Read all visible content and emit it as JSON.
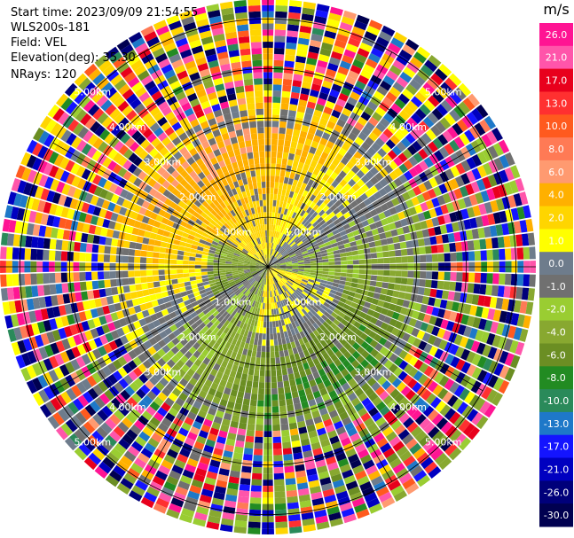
{
  "header": {
    "start_time": "Start time: 2023/09/09 21:54:55",
    "station": "WLS200s-181",
    "field": "Field: VEL",
    "elevation": "Elevation(deg): 35.30",
    "nrays": "NRays: 120"
  },
  "chart_data": {
    "type": "ppi",
    "field": "VEL",
    "rays": 120,
    "range_rings_km": [
      1.0,
      2.0,
      3.0,
      4.0,
      5.0
    ],
    "range_ring_labels": [
      "1.00km",
      "2.00km",
      "3.00km",
      "4.00km",
      "5.00km"
    ],
    "max_range_km": 5.4,
    "gates": 44,
    "crosshair": true,
    "colorbar": {
      "unit": "m/s",
      "ticks": [
        "26.0",
        "21.0",
        "17.0",
        "13.0",
        "10.0",
        "8.0",
        "6.0",
        "4.0",
        "2.0",
        "1.0",
        "0.0",
        "-1.0",
        "-2.0",
        "-4.0",
        "-6.0",
        "-8.0",
        "-10.0",
        "-13.0",
        "-17.0",
        "-21.0",
        "-26.0",
        "-30.0"
      ],
      "bins": [
        {
          "min": 26.0,
          "max": 30.0,
          "color": "#ff1493"
        },
        {
          "min": 21.0,
          "max": 26.0,
          "color": "#ff55aa"
        },
        {
          "min": 17.0,
          "max": 21.0,
          "color": "#e8001c"
        },
        {
          "min": 13.0,
          "max": 17.0,
          "color": "#ff3030"
        },
        {
          "min": 10.0,
          "max": 13.0,
          "color": "#ff5a1e"
        },
        {
          "min": 8.0,
          "max": 10.0,
          "color": "#ff7a55"
        },
        {
          "min": 6.0,
          "max": 8.0,
          "color": "#ff9a70"
        },
        {
          "min": 4.0,
          "max": 6.0,
          "color": "#ffb000"
        },
        {
          "min": 2.0,
          "max": 4.0,
          "color": "#ffd500"
        },
        {
          "min": 1.0,
          "max": 2.0,
          "color": "#ffff00"
        },
        {
          "min": 0.0,
          "max": 1.0,
          "color": "#6e7c8c"
        },
        {
          "min": -1.0,
          "max": 0.0,
          "color": "#707070"
        },
        {
          "min": -2.0,
          "max": -1.0,
          "color": "#9acd32"
        },
        {
          "min": -4.0,
          "max": -2.0,
          "color": "#88a830"
        },
        {
          "min": -6.0,
          "max": -4.0,
          "color": "#6b8e23"
        },
        {
          "min": -8.0,
          "max": -6.0,
          "color": "#228b22"
        },
        {
          "min": -10.0,
          "max": -8.0,
          "color": "#2a8a5a"
        },
        {
          "min": -13.0,
          "max": -10.0,
          "color": "#1e78c8"
        },
        {
          "min": -17.0,
          "max": -13.0,
          "color": "#1414ff"
        },
        {
          "min": -21.0,
          "max": -17.0,
          "color": "#0000c0"
        },
        {
          "min": -26.0,
          "max": -21.0,
          "color": "#00007a"
        },
        {
          "min": -30.0,
          "max": -26.0,
          "color": "#000050"
        }
      ]
    }
  }
}
